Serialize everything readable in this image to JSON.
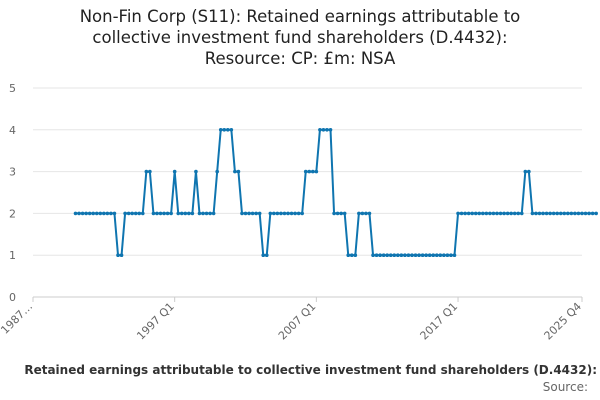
{
  "title_lines": [
    "Non-Fin Corp (S11): Retained earnings attributable to",
    "collective investment fund shareholders (D.4432):",
    "Resource: CP: £m: NSA"
  ],
  "caption": "Retained earnings attributable to collective investment fund shareholders (D.4432):",
  "source_label": "Source:",
  "colors": {
    "line": "#0f75b0",
    "grid": "#e6e6e6",
    "axis": "#cccccc",
    "text": "#666666"
  },
  "chart_data": {
    "type": "line",
    "title": "Non-Fin Corp (S11): Retained earnings attributable to collective investment fund shareholders (D.4432): Resource: CP: £m: NSA",
    "xlabel": "",
    "ylabel": "",
    "ylim": [
      0,
      5
    ],
    "yticks": [
      0,
      1,
      2,
      3,
      4,
      5
    ],
    "xlim": [
      "1987 Q1",
      "2025 Q4"
    ],
    "x_tick_labels": [
      "1987…",
      "1997 Q1",
      "2007 Q1",
      "2017 Q1",
      "2025 Q4"
    ],
    "x_tick_positions": [
      "1987 Q1",
      "1997 Q1",
      "2007 Q1",
      "2017 Q1",
      "2025 Q4"
    ],
    "grid": true,
    "legend": "none",
    "series": [
      {
        "start": "1990 Q1",
        "frequency": "quarterly",
        "values": [
          2,
          2,
          2,
          2,
          2,
          2,
          2,
          2,
          2,
          2,
          2,
          2,
          1,
          1,
          2,
          2,
          2,
          2,
          2,
          2,
          3,
          3,
          2,
          2,
          2,
          2,
          2,
          2,
          3,
          2,
          2,
          2,
          2,
          2,
          3,
          2,
          2,
          2,
          2,
          2,
          3,
          4,
          4,
          4,
          4,
          3,
          3,
          2,
          2,
          2,
          2,
          2,
          2,
          1,
          1,
          2,
          2,
          2,
          2,
          2,
          2,
          2,
          2,
          2,
          2,
          3,
          3,
          3,
          3,
          4,
          4,
          4,
          4,
          2,
          2,
          2,
          2,
          1,
          1,
          1,
          2,
          2,
          2,
          2,
          1,
          1,
          1,
          1,
          1,
          1,
          1,
          1,
          1,
          1,
          1,
          1,
          1,
          1,
          1,
          1,
          1,
          1,
          1,
          1,
          1,
          1,
          1,
          1,
          2,
          2,
          2,
          2,
          2,
          2,
          2,
          2,
          2,
          2,
          2,
          2,
          2,
          2,
          2,
          2,
          2,
          2,
          2,
          3,
          3,
          2,
          2,
          2,
          2,
          2,
          2,
          2,
          2,
          2,
          2,
          2,
          2,
          2,
          2,
          2,
          2,
          2,
          2,
          2
        ]
      }
    ]
  }
}
